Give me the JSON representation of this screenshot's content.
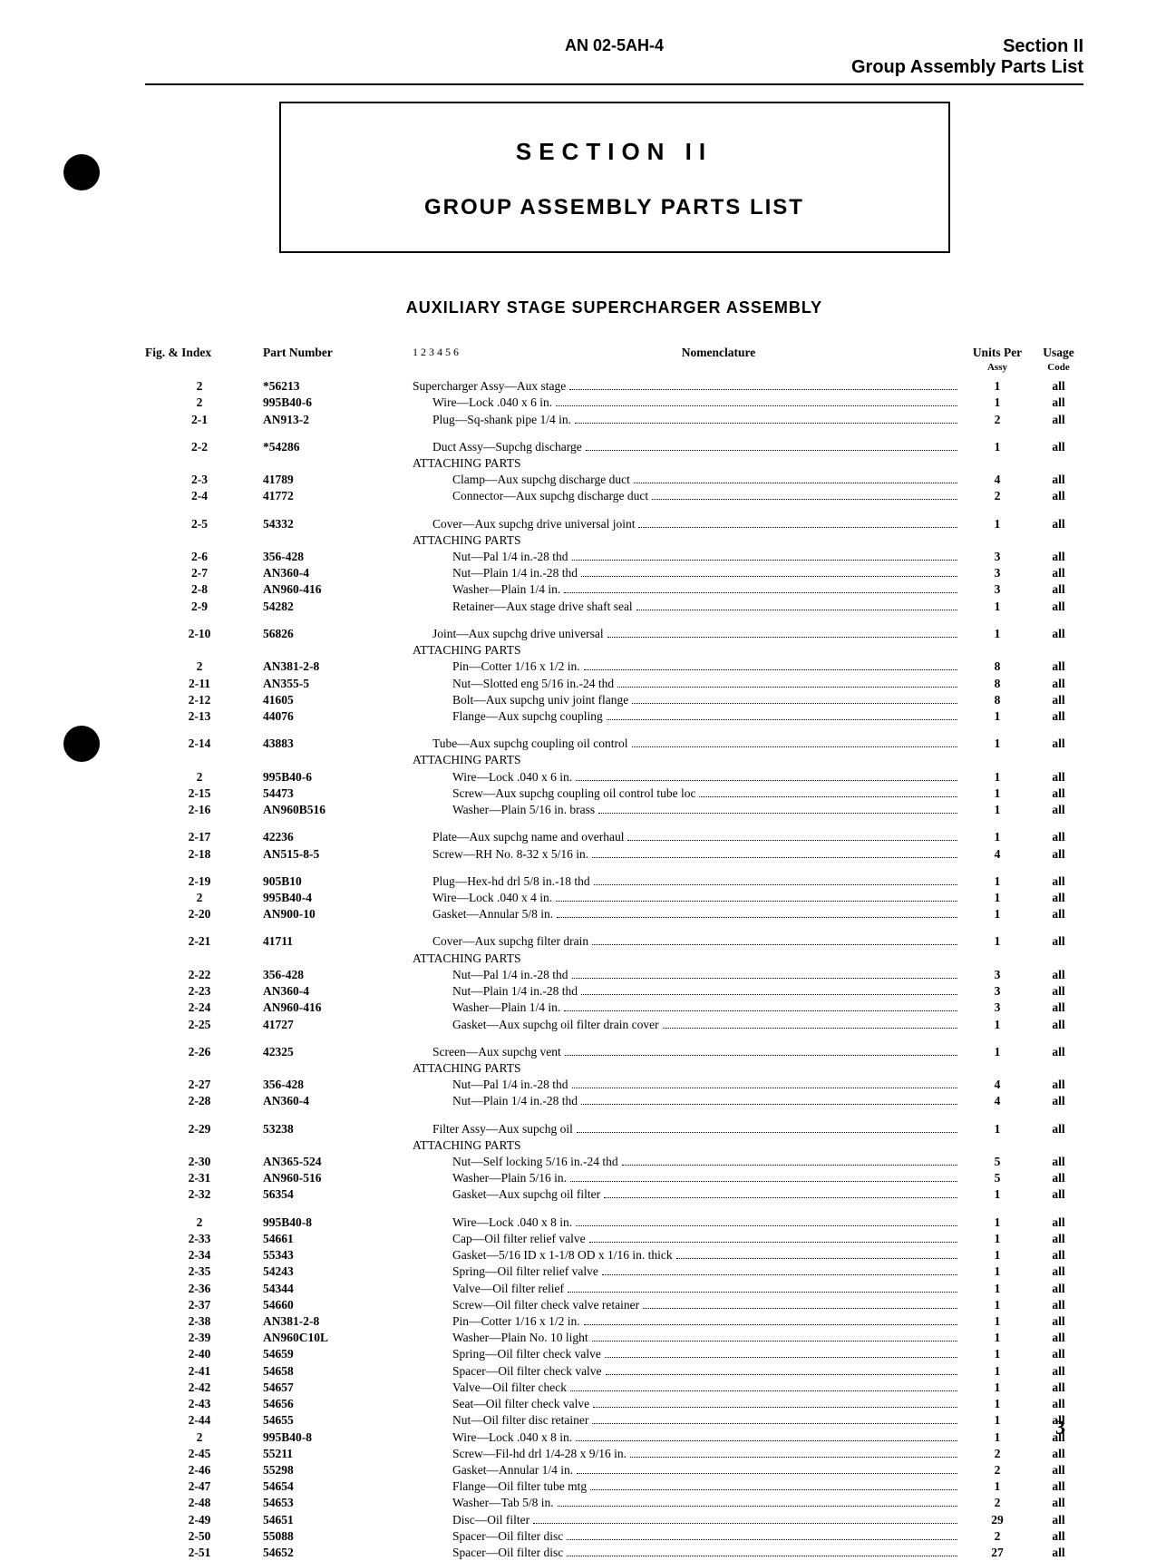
{
  "header": {
    "doc_number": "AN 02-5AH-4",
    "section_label": "Section II",
    "subtitle": "Group Assembly Parts List"
  },
  "title_box": {
    "line1": "SECTION II",
    "line2": "GROUP ASSEMBLY PARTS LIST"
  },
  "assembly_title": "AUXILIARY STAGE SUPERCHARGER ASSEMBLY",
  "columns": {
    "fig": "Fig. & Index",
    "part": "Part Number",
    "indent": "1 2 3 4 5 6",
    "nom": "Nomenclature",
    "units_top": "Units Per",
    "units_sub": "Assy",
    "usage_top": "Usage",
    "usage_sub": "Code"
  },
  "page_number": "3",
  "groups": [
    {
      "rows": [
        {
          "fig": "2",
          "part": "*56213",
          "indent": 0,
          "nom": "Supercharger Assy—Aux stage",
          "units": "1",
          "usage": "all"
        },
        {
          "fig": "2",
          "part": "995B40-6",
          "indent": 1,
          "nom": "Wire—Lock .040 x 6 in.",
          "units": "1",
          "usage": "all"
        },
        {
          "fig": "2-1",
          "part": "AN913-2",
          "indent": 1,
          "nom": "Plug—Sq-shank pipe 1/4 in.",
          "units": "2",
          "usage": "all"
        }
      ]
    },
    {
      "rows": [
        {
          "fig": "2-2",
          "part": "*54286",
          "indent": 1,
          "nom": "Duct Assy—Supchg discharge",
          "units": "1",
          "usage": "all"
        },
        {
          "fig": "",
          "part": "",
          "indent": 0,
          "nom": "ATTACHING PARTS",
          "plain": true
        },
        {
          "fig": "2-3",
          "part": "41789",
          "indent": 2,
          "nom": "Clamp—Aux supchg discharge duct",
          "units": "4",
          "usage": "all"
        },
        {
          "fig": "2-4",
          "part": "41772",
          "indent": 2,
          "nom": "Connector—Aux supchg discharge duct",
          "units": "2",
          "usage": "all"
        }
      ]
    },
    {
      "rows": [
        {
          "fig": "2-5",
          "part": "54332",
          "indent": 1,
          "nom": "Cover—Aux supchg drive universal joint",
          "units": "1",
          "usage": "all"
        },
        {
          "fig": "",
          "part": "",
          "indent": 0,
          "nom": "ATTACHING PARTS",
          "plain": true
        },
        {
          "fig": "2-6",
          "part": "356-428",
          "indent": 2,
          "nom": "Nut—Pal 1/4 in.-28 thd",
          "units": "3",
          "usage": "all"
        },
        {
          "fig": "2-7",
          "part": "AN360-4",
          "indent": 2,
          "nom": "Nut—Plain 1/4 in.-28 thd",
          "units": "3",
          "usage": "all"
        },
        {
          "fig": "2-8",
          "part": "AN960-416",
          "indent": 2,
          "nom": "Washer—Plain 1/4 in.",
          "units": "3",
          "usage": "all"
        },
        {
          "fig": "2-9",
          "part": "54282",
          "indent": 2,
          "nom": "Retainer—Aux stage drive shaft seal",
          "units": "1",
          "usage": "all"
        }
      ]
    },
    {
      "rows": [
        {
          "fig": "2-10",
          "part": "56826",
          "indent": 1,
          "nom": "Joint—Aux supchg drive universal",
          "units": "1",
          "usage": "all"
        },
        {
          "fig": "",
          "part": "",
          "indent": 0,
          "nom": "ATTACHING PARTS",
          "plain": true
        },
        {
          "fig": "2",
          "part": "AN381-2-8",
          "indent": 2,
          "nom": "Pin—Cotter 1/16 x 1/2 in.",
          "units": "8",
          "usage": "all"
        },
        {
          "fig": "2-11",
          "part": "AN355-5",
          "indent": 2,
          "nom": "Nut—Slotted eng 5/16 in.-24 thd",
          "units": "8",
          "usage": "all"
        },
        {
          "fig": "2-12",
          "part": "41605",
          "indent": 2,
          "nom": "Bolt—Aux supchg univ joint flange",
          "units": "8",
          "usage": "all"
        },
        {
          "fig": "2-13",
          "part": "44076",
          "indent": 2,
          "nom": "Flange—Aux supchg coupling",
          "units": "1",
          "usage": "all"
        }
      ]
    },
    {
      "rows": [
        {
          "fig": "2-14",
          "part": "43883",
          "indent": 1,
          "nom": "Tube—Aux supchg coupling oil control",
          "units": "1",
          "usage": "all"
        },
        {
          "fig": "",
          "part": "",
          "indent": 0,
          "nom": "ATTACHING PARTS",
          "plain": true
        },
        {
          "fig": "2",
          "part": "995B40-6",
          "indent": 2,
          "nom": "Wire—Lock .040 x 6 in.",
          "units": "1",
          "usage": "all"
        },
        {
          "fig": "2-15",
          "part": "54473",
          "indent": 2,
          "nom": "Screw—Aux supchg coupling oil control tube loc",
          "units": "1",
          "usage": "all"
        },
        {
          "fig": "2-16",
          "part": "AN960B516",
          "indent": 2,
          "nom": "Washer—Plain 5/16 in. brass",
          "units": "1",
          "usage": "all"
        }
      ]
    },
    {
      "rows": [
        {
          "fig": "2-17",
          "part": "42236",
          "indent": 1,
          "nom": "Plate—Aux supchg name and overhaul",
          "units": "1",
          "usage": "all"
        },
        {
          "fig": "2-18",
          "part": "AN515-8-5",
          "indent": 1,
          "nom": "Screw—RH No. 8-32 x 5/16 in.",
          "units": "4",
          "usage": "all"
        }
      ]
    },
    {
      "rows": [
        {
          "fig": "2-19",
          "part": "905B10",
          "indent": 1,
          "nom": "Plug—Hex-hd drl 5/8 in.-18 thd",
          "units": "1",
          "usage": "all"
        },
        {
          "fig": "2",
          "part": "995B40-4",
          "indent": 1,
          "nom": "Wire—Lock .040 x 4 in.",
          "units": "1",
          "usage": "all"
        },
        {
          "fig": "2-20",
          "part": "AN900-10",
          "indent": 1,
          "nom": "Gasket—Annular 5/8 in.",
          "units": "1",
          "usage": "all"
        }
      ]
    },
    {
      "rows": [
        {
          "fig": "2-21",
          "part": "41711",
          "indent": 1,
          "nom": "Cover—Aux supchg filter drain",
          "units": "1",
          "usage": "all"
        },
        {
          "fig": "",
          "part": "",
          "indent": 0,
          "nom": "ATTACHING PARTS",
          "plain": true
        },
        {
          "fig": "2-22",
          "part": "356-428",
          "indent": 2,
          "nom": "Nut—Pal 1/4 in.-28 thd",
          "units": "3",
          "usage": "all"
        },
        {
          "fig": "2-23",
          "part": "AN360-4",
          "indent": 2,
          "nom": "Nut—Plain 1/4 in.-28 thd",
          "units": "3",
          "usage": "all"
        },
        {
          "fig": "2-24",
          "part": "AN960-416",
          "indent": 2,
          "nom": "Washer—Plain 1/4 in.",
          "units": "3",
          "usage": "all"
        },
        {
          "fig": "2-25",
          "part": "41727",
          "indent": 2,
          "nom": "Gasket—Aux supchg oil filter drain cover",
          "units": "1",
          "usage": "all"
        }
      ]
    },
    {
      "rows": [
        {
          "fig": "2-26",
          "part": "42325",
          "indent": 1,
          "nom": "Screen—Aux supchg vent",
          "units": "1",
          "usage": "all"
        },
        {
          "fig": "",
          "part": "",
          "indent": 0,
          "nom": "ATTACHING PARTS",
          "plain": true
        },
        {
          "fig": "2-27",
          "part": "356-428",
          "indent": 2,
          "nom": "Nut—Pal 1/4 in.-28 thd",
          "units": "4",
          "usage": "all"
        },
        {
          "fig": "2-28",
          "part": "AN360-4",
          "indent": 2,
          "nom": "Nut—Plain 1/4 in.-28 thd",
          "units": "4",
          "usage": "all"
        }
      ]
    },
    {
      "rows": [
        {
          "fig": "2-29",
          "part": "53238",
          "indent": 1,
          "nom": "Filter Assy—Aux supchg oil",
          "units": "1",
          "usage": "all"
        },
        {
          "fig": "",
          "part": "",
          "indent": 0,
          "nom": "ATTACHING PARTS",
          "plain": true
        },
        {
          "fig": "2-30",
          "part": "AN365-524",
          "indent": 2,
          "nom": "Nut—Self locking 5/16 in.-24 thd",
          "units": "5",
          "usage": "all"
        },
        {
          "fig": "2-31",
          "part": "AN960-516",
          "indent": 2,
          "nom": "Washer—Plain 5/16 in.",
          "units": "5",
          "usage": "all"
        },
        {
          "fig": "2-32",
          "part": "56354",
          "indent": 2,
          "nom": "Gasket—Aux supchg oil filter",
          "units": "1",
          "usage": "all"
        }
      ]
    },
    {
      "rows": [
        {
          "fig": "2",
          "part": "995B40-8",
          "indent": 2,
          "nom": "Wire—Lock .040 x 8 in.",
          "units": "1",
          "usage": "all"
        },
        {
          "fig": "2-33",
          "part": "54661",
          "indent": 2,
          "nom": "Cap—Oil filter relief valve",
          "units": "1",
          "usage": "all"
        },
        {
          "fig": "2-34",
          "part": "55343",
          "indent": 2,
          "nom": "Gasket—5/16 ID x 1-1/8 OD x 1/16 in. thick",
          "units": "1",
          "usage": "all"
        },
        {
          "fig": "2-35",
          "part": "54243",
          "indent": 2,
          "nom": "Spring—Oil filter relief valve",
          "units": "1",
          "usage": "all"
        },
        {
          "fig": "2-36",
          "part": "54344",
          "indent": 2,
          "nom": "Valve—Oil filter relief",
          "units": "1",
          "usage": "all"
        },
        {
          "fig": "2-37",
          "part": "54660",
          "indent": 2,
          "nom": "Screw—Oil filter check valve retainer",
          "units": "1",
          "usage": "all"
        },
        {
          "fig": "2-38",
          "part": "AN381-2-8",
          "indent": 2,
          "nom": "Pin—Cotter 1/16 x 1/2 in.",
          "units": "1",
          "usage": "all"
        },
        {
          "fig": "2-39",
          "part": "AN960C10L",
          "indent": 2,
          "nom": "Washer—Plain No. 10 light",
          "units": "1",
          "usage": "all"
        },
        {
          "fig": "2-40",
          "part": "54659",
          "indent": 2,
          "nom": "Spring—Oil filter check valve",
          "units": "1",
          "usage": "all"
        },
        {
          "fig": "2-41",
          "part": "54658",
          "indent": 2,
          "nom": "Spacer—Oil filter check valve",
          "units": "1",
          "usage": "all"
        },
        {
          "fig": "2-42",
          "part": "54657",
          "indent": 2,
          "nom": "Valve—Oil filter check",
          "units": "1",
          "usage": "all"
        },
        {
          "fig": "2-43",
          "part": "54656",
          "indent": 2,
          "nom": "Seat—Oil filter check valve",
          "units": "1",
          "usage": "all"
        },
        {
          "fig": "2-44",
          "part": "54655",
          "indent": 2,
          "nom": "Nut—Oil filter disc retainer",
          "units": "1",
          "usage": "all"
        },
        {
          "fig": "2",
          "part": "995B40-8",
          "indent": 2,
          "nom": "Wire—Lock .040 x 8 in.",
          "units": "1",
          "usage": "all"
        },
        {
          "fig": "2-45",
          "part": "55211",
          "indent": 2,
          "nom": "Screw—Fil-hd drl 1/4-28 x 9/16 in.",
          "units": "2",
          "usage": "all"
        },
        {
          "fig": "2-46",
          "part": "55298",
          "indent": 2,
          "nom": "Gasket—Annular 1/4 in.",
          "units": "2",
          "usage": "all"
        },
        {
          "fig": "2-47",
          "part": "54654",
          "indent": 2,
          "nom": "Flange—Oil filter tube mtg",
          "units": "1",
          "usage": "all"
        },
        {
          "fig": "2-48",
          "part": "54653",
          "indent": 2,
          "nom": "Washer—Tab 5/8 in.",
          "units": "2",
          "usage": "all"
        },
        {
          "fig": "2-49",
          "part": "54651",
          "indent": 2,
          "nom": "Disc—Oil filter",
          "units": "29",
          "usage": "all"
        },
        {
          "fig": "2-50",
          "part": "55088",
          "indent": 2,
          "nom": "Spacer—Oil filter disc",
          "units": "2",
          "usage": "all"
        },
        {
          "fig": "2-51",
          "part": "54652",
          "indent": 2,
          "nom": "Spacer—Oil filter disc",
          "units": "27",
          "usage": "all"
        }
      ]
    }
  ]
}
